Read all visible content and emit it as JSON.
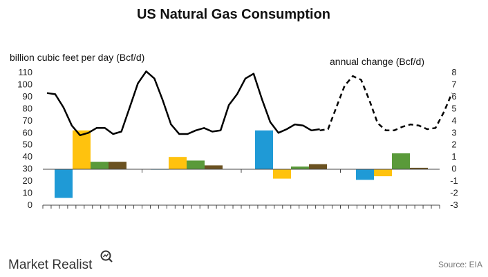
{
  "header": {
    "title": "US Natural Gas Consumption"
  },
  "footer": {
    "brand": "Market Realist",
    "source": "Source: EIA"
  },
  "colors": {
    "line": "#000000",
    "blue": "#1f9ad6",
    "yellow": "#ffc20e",
    "green": "#5a9a3a",
    "brown": "#6b5221",
    "axis": "#444444"
  },
  "icons": {
    "brand_icon": "magnifier-chart-icon"
  },
  "chart_data": {
    "type": "line",
    "title": "US Natural Gas Consumption",
    "ylabel": "billion cubic feet per day (Bcf/d)",
    "y2label": "annual change (Bcf/d)",
    "ylim": [
      0,
      110
    ],
    "y2lim": [
      -3,
      8
    ],
    "yticks": [
      0,
      10,
      20,
      30,
      40,
      50,
      60,
      70,
      80,
      90,
      100,
      110
    ],
    "y2ticks": [
      -3,
      -2,
      -1,
      0,
      1,
      2,
      3,
      4,
      5,
      6,
      7,
      8
    ],
    "x_periods": 48,
    "grid": false,
    "series": [
      {
        "kind": "line",
        "style": "solid",
        "axis": "left",
        "values": [
          93,
          92,
          81,
          66,
          58,
          60,
          64,
          64,
          59,
          61,
          81,
          101,
          111,
          105,
          87,
          67,
          59,
          59,
          62,
          64,
          61,
          62,
          83,
          92,
          105,
          109,
          88,
          69,
          60,
          63,
          67,
          66,
          62,
          63
        ]
      },
      {
        "kind": "line",
        "style": "dashed",
        "axis": "left",
        "values": [
          62,
          63,
          81,
          99,
          107,
          104,
          87,
          68,
          62,
          62,
          65,
          67,
          66,
          63,
          64,
          77,
          93
        ]
      },
      {
        "kind": "bars",
        "axis": "right",
        "color": "colors",
        "values": [
          -2.4,
          3.2,
          0.6,
          0.6,
          0.0,
          1.0,
          0.7,
          0.3,
          3.2,
          -0.8,
          0.2,
          0.4,
          -0.9,
          -0.6,
          1.3,
          0.1
        ]
      }
    ]
  }
}
